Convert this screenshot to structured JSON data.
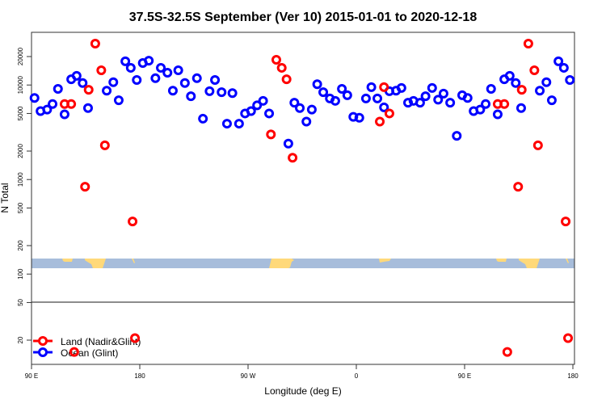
{
  "chart_data": {
    "type": "scatter",
    "title": "37.5S-32.5S September (Ver 10)   2015-01-01 to 2020-12-18",
    "xlabel": "Longitude (deg E)",
    "ylabel": "N Total",
    "yscale": "log",
    "ylim": [
      10,
      40000
    ],
    "xlim_label": "90 E to 180 (wrapping through 90 W, 0, 90 E)",
    "x_tick_labels": [
      "90 E",
      "180",
      "90 W",
      "0",
      "90 E",
      "180"
    ],
    "y_ticks": [
      20000,
      10000,
      5000,
      2000,
      1000,
      500,
      200,
      100,
      50,
      20
    ],
    "y_tick_labels": [
      "20000",
      "10000",
      "5000",
      "2000",
      "1000",
      "500",
      "200",
      "100",
      "50",
      "20"
    ],
    "grid": false,
    "legend_position": "bottom-left",
    "series": [
      {
        "name": "Land (Nadir&Glint)",
        "color": "#ff0000",
        "points": [
          [
            117.5,
            6300
          ],
          [
            123,
            6300
          ],
          [
            125.5,
            15
          ],
          [
            134.5,
            840
          ],
          [
            137.5,
            8900
          ],
          [
            143,
            27400
          ],
          [
            148,
            14300
          ],
          [
            151,
            2300
          ],
          [
            174,
            360
          ],
          [
            176,
            21
          ],
          [
            -71,
            3000
          ],
          [
            -66.5,
            18500
          ],
          [
            -62,
            15200
          ],
          [
            -58,
            11500
          ],
          [
            -53,
            1700
          ],
          [
            19.5,
            4100
          ],
          [
            23,
            9500
          ],
          [
            27.5,
            5000
          ]
        ]
      },
      {
        "name": "Ocean (Glint)",
        "color": "#0000ff",
        "points": [
          [
            92.5,
            7300
          ],
          [
            97.5,
            5300
          ],
          [
            103,
            5500
          ],
          [
            107.5,
            6300
          ],
          [
            112,
            9100
          ],
          [
            117.5,
            4900
          ],
          [
            123,
            11500
          ],
          [
            127.5,
            12500
          ],
          [
            132.5,
            10500
          ],
          [
            137,
            5700
          ],
          [
            152.5,
            8700
          ],
          [
            158,
            10700
          ],
          [
            162.5,
            6900
          ],
          [
            168,
            17800
          ],
          [
            172.5,
            15200
          ],
          [
            177.5,
            11300
          ],
          [
            -177.5,
            17100
          ],
          [
            -172.5,
            18100
          ],
          [
            -167,
            11800
          ],
          [
            -162.5,
            15200
          ],
          [
            -157,
            13500
          ],
          [
            -152.5,
            8700
          ],
          [
            -148,
            14300
          ],
          [
            -142.5,
            10500
          ],
          [
            -137.5,
            7600
          ],
          [
            -132.5,
            11800
          ],
          [
            -127.5,
            4400
          ],
          [
            -122,
            8600
          ],
          [
            -117.5,
            11300
          ],
          [
            -112,
            8400
          ],
          [
            -107.5,
            3900
          ],
          [
            -103,
            8200
          ],
          [
            -97.5,
            3900
          ],
          [
            -92.5,
            5000
          ],
          [
            -87.5,
            5300
          ],
          [
            -82.5,
            6100
          ],
          [
            -77.5,
            6800
          ],
          [
            -72.5,
            5000
          ],
          [
            -56.5,
            2400
          ],
          [
            -51.5,
            6500
          ],
          [
            -47,
            5700
          ],
          [
            -41.5,
            4100
          ],
          [
            -37,
            5500
          ],
          [
            -32.5,
            10200
          ],
          [
            -27.5,
            8400
          ],
          [
            -22,
            7200
          ],
          [
            -17.5,
            6800
          ],
          [
            -12,
            9100
          ],
          [
            -7.5,
            7800
          ],
          [
            -2.5,
            4600
          ],
          [
            2.5,
            4500
          ],
          [
            8,
            7200
          ],
          [
            12.5,
            9500
          ],
          [
            17.5,
            7200
          ],
          [
            23,
            5800
          ],
          [
            27.5,
            8600
          ],
          [
            33,
            8700
          ],
          [
            37.5,
            9300
          ],
          [
            43,
            6500
          ],
          [
            47.5,
            6800
          ],
          [
            53,
            6500
          ],
          [
            57.5,
            7600
          ],
          [
            63,
            9300
          ],
          [
            68,
            7000
          ],
          [
            72.5,
            8100
          ],
          [
            78,
            6500
          ],
          [
            83.5,
            2900
          ],
          [
            88,
            7800
          ]
        ]
      }
    ],
    "map_strip": {
      "ocean_color": "#a7bddb",
      "land_color": "#ffd97a"
    }
  }
}
